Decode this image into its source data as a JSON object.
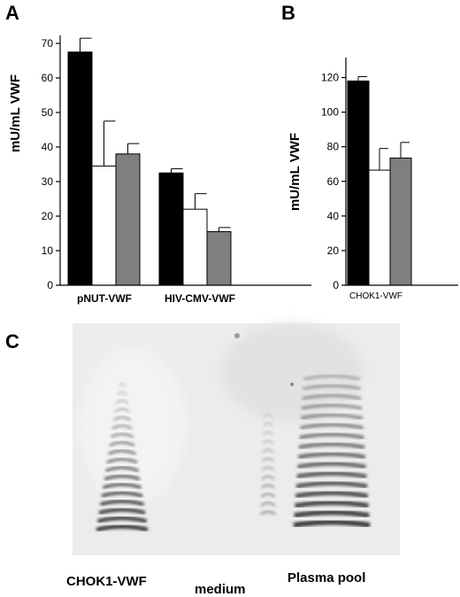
{
  "panels": {
    "a": "A",
    "b": "B",
    "c": "C"
  },
  "chart_data": [
    {
      "type": "bar",
      "panel": "A",
      "ylabel": "mU/mL VWF",
      "ylim": [
        0,
        70
      ],
      "yticks": [
        "0",
        "10",
        "20",
        "30",
        "40",
        "50",
        "60",
        "70"
      ],
      "categories": [
        "pNUT-VWF",
        "HIV-CMV-VWF"
      ],
      "series": [
        {
          "color": "#000000",
          "values": [
            67.5,
            32.5
          ],
          "errors": [
            4.0,
            1.2
          ]
        },
        {
          "color": "#ffffff",
          "values": [
            34.5,
            22.0
          ],
          "errors": [
            13.0,
            4.5
          ]
        },
        {
          "color": "#7f7f7f",
          "values": [
            38.0,
            15.5
          ],
          "errors": [
            3.0,
            1.2
          ]
        }
      ]
    },
    {
      "type": "bar",
      "panel": "B",
      "ylabel": "mU/mL VWF",
      "ylim": [
        0,
        130
      ],
      "yticks": [
        "0",
        "20",
        "40",
        "60",
        "80",
        "100",
        "120"
      ],
      "categories": [
        "CHOK1-VWF"
      ],
      "series": [
        {
          "color": "#000000",
          "values": [
            118
          ],
          "errors": [
            2.5
          ]
        },
        {
          "color": "#ffffff",
          "values": [
            66.5
          ],
          "errors": [
            12.5
          ]
        },
        {
          "color": "#7f7f7f",
          "values": [
            73.5
          ],
          "errors": [
            9.0
          ]
        }
      ]
    }
  ],
  "gel": {
    "lanes": [
      "CHOK1-VWF",
      "medium",
      "Plasma pool"
    ]
  }
}
